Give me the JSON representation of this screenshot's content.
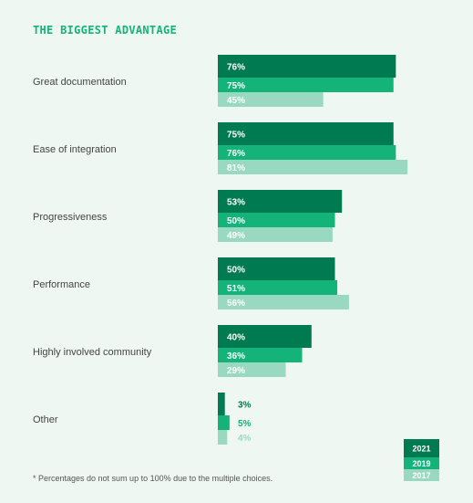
{
  "title": "THE BIGGEST ADVANTAGE",
  "footnote": "* Percentages do not sum up to 100% due to the multiple choices.",
  "colors": {
    "2021": "#007a50",
    "2019": "#13b37a",
    "2017": "#9ad9c1"
  },
  "chart_data": {
    "type": "bar",
    "orientation": "horizontal",
    "title": "THE BIGGEST ADVANTAGE",
    "categories": [
      "Great documentation",
      "Ease of integration",
      "Progressiveness",
      "Performance",
      "Highly involved community",
      "Other"
    ],
    "series": [
      {
        "name": "2021",
        "values": [
          76,
          75,
          53,
          50,
          40,
          3
        ]
      },
      {
        "name": "2019",
        "values": [
          75,
          76,
          50,
          51,
          36,
          5
        ]
      },
      {
        "name": "2017",
        "values": [
          45,
          81,
          49,
          56,
          29,
          4
        ]
      }
    ],
    "value_suffix": "%",
    "legend_position": "bottom-right",
    "grid": false
  }
}
